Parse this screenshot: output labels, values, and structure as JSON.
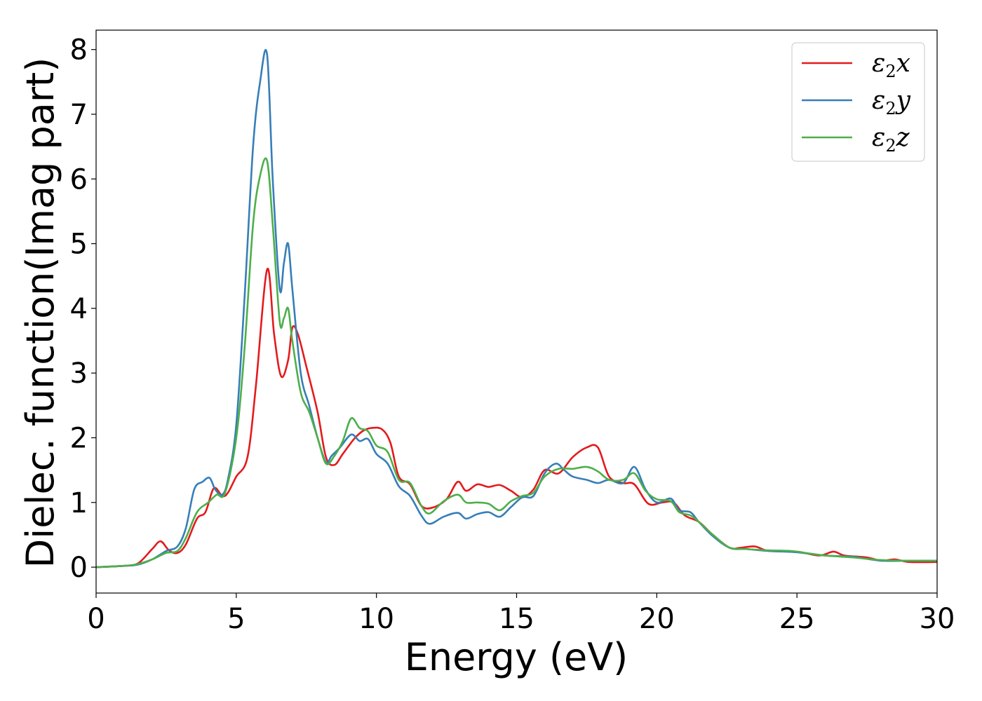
{
  "chart_data": {
    "type": "line",
    "xlabel": "Energy (eV)",
    "ylabel": "Dielec. function(Imag part)",
    "xlim": [
      0,
      30
    ],
    "ylim": [
      -0.4,
      8.3
    ],
    "xticks": [
      0,
      5,
      10,
      15,
      20,
      25,
      30
    ],
    "yticks": [
      0,
      1,
      2,
      3,
      4,
      5,
      6,
      7,
      8
    ],
    "grid": false,
    "legend_position": "top-right",
    "series": [
      {
        "name": "ε2x",
        "label_main": "ε",
        "label_sub": "2",
        "label_tail": "x",
        "color": "#e41a1c",
        "points": [
          [
            0,
            0
          ],
          [
            1,
            0.02
          ],
          [
            1.5,
            0.06
          ],
          [
            2,
            0.28
          ],
          [
            2.3,
            0.4
          ],
          [
            2.6,
            0.26
          ],
          [
            2.9,
            0.22
          ],
          [
            3.2,
            0.35
          ],
          [
            3.6,
            0.75
          ],
          [
            3.9,
            0.85
          ],
          [
            4.2,
            1.22
          ],
          [
            4.5,
            1.1
          ],
          [
            4.7,
            1.15
          ],
          [
            5,
            1.4
          ],
          [
            5.4,
            1.7
          ],
          [
            5.7,
            2.8
          ],
          [
            6.1,
            4.6
          ],
          [
            6.35,
            3.6
          ],
          [
            6.6,
            2.95
          ],
          [
            6.85,
            3.2
          ],
          [
            7,
            3.7
          ],
          [
            7.2,
            3.6
          ],
          [
            7.5,
            3.1
          ],
          [
            7.9,
            2.4
          ],
          [
            8.2,
            1.7
          ],
          [
            8.5,
            1.58
          ],
          [
            8.8,
            1.75
          ],
          [
            9.2,
            1.98
          ],
          [
            9.5,
            2.1
          ],
          [
            9.8,
            2.15
          ],
          [
            10.2,
            2.13
          ],
          [
            10.5,
            1.92
          ],
          [
            10.8,
            1.4
          ],
          [
            11.2,
            1.28
          ],
          [
            11.6,
            0.95
          ],
          [
            12,
            0.92
          ],
          [
            12.5,
            1.05
          ],
          [
            12.9,
            1.32
          ],
          [
            13.2,
            1.18
          ],
          [
            13.6,
            1.28
          ],
          [
            14,
            1.24
          ],
          [
            14.4,
            1.27
          ],
          [
            14.8,
            1.18
          ],
          [
            15.2,
            1.08
          ],
          [
            15.6,
            1.2
          ],
          [
            16,
            1.5
          ],
          [
            16.5,
            1.45
          ],
          [
            17,
            1.7
          ],
          [
            17.5,
            1.85
          ],
          [
            17.9,
            1.85
          ],
          [
            18.3,
            1.4
          ],
          [
            18.8,
            1.3
          ],
          [
            19.2,
            1.28
          ],
          [
            19.7,
            0.98
          ],
          [
            20.2,
            1.0
          ],
          [
            20.6,
            1.0
          ],
          [
            21,
            0.8
          ],
          [
            21.5,
            0.7
          ],
          [
            22,
            0.5
          ],
          [
            22.6,
            0.3
          ],
          [
            23,
            0.3
          ],
          [
            23.5,
            0.32
          ],
          [
            24,
            0.25
          ],
          [
            25,
            0.24
          ],
          [
            25.8,
            0.18
          ],
          [
            26.3,
            0.24
          ],
          [
            26.7,
            0.18
          ],
          [
            27.5,
            0.15
          ],
          [
            28,
            0.1
          ],
          [
            28.5,
            0.12
          ],
          [
            29,
            0.08
          ],
          [
            30,
            0.08
          ]
        ]
      },
      {
        "name": "ε2y",
        "label_main": "ε",
        "label_sub": "2",
        "label_tail": "y",
        "color": "#377eb8",
        "points": [
          [
            0,
            0
          ],
          [
            1,
            0.02
          ],
          [
            1.5,
            0.04
          ],
          [
            2,
            0.12
          ],
          [
            2.5,
            0.25
          ],
          [
            2.9,
            0.32
          ],
          [
            3.2,
            0.6
          ],
          [
            3.5,
            1.2
          ],
          [
            3.8,
            1.32
          ],
          [
            4.05,
            1.38
          ],
          [
            4.25,
            1.2
          ],
          [
            4.5,
            1.12
          ],
          [
            4.7,
            1.35
          ],
          [
            5,
            2.2
          ],
          [
            5.3,
            4.2
          ],
          [
            5.6,
            6.5
          ],
          [
            5.85,
            7.5
          ],
          [
            6.1,
            7.92
          ],
          [
            6.3,
            6.0
          ],
          [
            6.55,
            4.3
          ],
          [
            6.7,
            4.7
          ],
          [
            6.85,
            5.0
          ],
          [
            7,
            4.3
          ],
          [
            7.3,
            3.0
          ],
          [
            7.6,
            2.5
          ],
          [
            7.9,
            2.0
          ],
          [
            8.2,
            1.62
          ],
          [
            8.4,
            1.72
          ],
          [
            8.7,
            1.85
          ],
          [
            9.1,
            2.05
          ],
          [
            9.4,
            1.95
          ],
          [
            9.7,
            1.98
          ],
          [
            10,
            1.75
          ],
          [
            10.4,
            1.6
          ],
          [
            10.8,
            1.25
          ],
          [
            11.2,
            1.1
          ],
          [
            11.6,
            0.8
          ],
          [
            11.9,
            0.67
          ],
          [
            12.4,
            0.78
          ],
          [
            12.9,
            0.84
          ],
          [
            13.2,
            0.75
          ],
          [
            13.6,
            0.82
          ],
          [
            14,
            0.85
          ],
          [
            14.4,
            0.78
          ],
          [
            14.8,
            0.93
          ],
          [
            15.2,
            1.08
          ],
          [
            15.6,
            1.1
          ],
          [
            16,
            1.45
          ],
          [
            16.4,
            1.6
          ],
          [
            16.7,
            1.5
          ],
          [
            17,
            1.4
          ],
          [
            17.5,
            1.35
          ],
          [
            17.9,
            1.3
          ],
          [
            18.3,
            1.35
          ],
          [
            18.8,
            1.3
          ],
          [
            19.2,
            1.55
          ],
          [
            19.6,
            1.2
          ],
          [
            20,
            1.0
          ],
          [
            20.5,
            1.06
          ],
          [
            20.8,
            0.88
          ],
          [
            21.2,
            0.85
          ],
          [
            21.5,
            0.7
          ],
          [
            22,
            0.48
          ],
          [
            22.6,
            0.3
          ],
          [
            23.2,
            0.28
          ],
          [
            24,
            0.25
          ],
          [
            25,
            0.23
          ],
          [
            26,
            0.18
          ],
          [
            27,
            0.16
          ],
          [
            28,
            0.1
          ],
          [
            29,
            0.1
          ],
          [
            30,
            0.1
          ]
        ]
      },
      {
        "name": "ε2z",
        "label_main": "ε",
        "label_sub": "2",
        "label_tail": "z",
        "color": "#4daf4a",
        "points": [
          [
            0,
            0
          ],
          [
            1,
            0.02
          ],
          [
            1.5,
            0.05
          ],
          [
            2,
            0.12
          ],
          [
            2.5,
            0.22
          ],
          [
            2.9,
            0.25
          ],
          [
            3.2,
            0.45
          ],
          [
            3.6,
            0.85
          ],
          [
            4,
            1.0
          ],
          [
            4.3,
            1.12
          ],
          [
            4.6,
            1.15
          ],
          [
            5,
            2.0
          ],
          [
            5.3,
            3.4
          ],
          [
            5.6,
            5.3
          ],
          [
            5.85,
            6.05
          ],
          [
            6.1,
            6.28
          ],
          [
            6.3,
            5.3
          ],
          [
            6.55,
            3.8
          ],
          [
            6.7,
            3.85
          ],
          [
            6.85,
            4.0
          ],
          [
            7,
            3.5
          ],
          [
            7.3,
            2.7
          ],
          [
            7.6,
            2.4
          ],
          [
            7.9,
            2.0
          ],
          [
            8.2,
            1.6
          ],
          [
            8.5,
            1.72
          ],
          [
            8.8,
            1.95
          ],
          [
            9.1,
            2.3
          ],
          [
            9.4,
            2.15
          ],
          [
            9.7,
            2.1
          ],
          [
            10,
            1.88
          ],
          [
            10.4,
            1.78
          ],
          [
            10.8,
            1.35
          ],
          [
            11.2,
            1.3
          ],
          [
            11.6,
            0.95
          ],
          [
            11.9,
            0.83
          ],
          [
            12.4,
            1.02
          ],
          [
            12.9,
            1.12
          ],
          [
            13.2,
            1.0
          ],
          [
            13.6,
            1.0
          ],
          [
            14,
            0.98
          ],
          [
            14.4,
            0.88
          ],
          [
            14.8,
            1.02
          ],
          [
            15.2,
            1.1
          ],
          [
            15.6,
            1.15
          ],
          [
            16,
            1.4
          ],
          [
            16.5,
            1.52
          ],
          [
            17,
            1.52
          ],
          [
            17.5,
            1.55
          ],
          [
            17.9,
            1.48
          ],
          [
            18.3,
            1.35
          ],
          [
            18.8,
            1.35
          ],
          [
            19.2,
            1.45
          ],
          [
            19.6,
            1.18
          ],
          [
            20,
            1.05
          ],
          [
            20.5,
            1.02
          ],
          [
            20.8,
            0.85
          ],
          [
            21.2,
            0.8
          ],
          [
            21.5,
            0.7
          ],
          [
            22,
            0.5
          ],
          [
            22.6,
            0.3
          ],
          [
            23.2,
            0.28
          ],
          [
            24,
            0.26
          ],
          [
            24.8,
            0.25
          ],
          [
            25.3,
            0.22
          ],
          [
            26,
            0.18
          ],
          [
            27,
            0.15
          ],
          [
            28,
            0.11
          ],
          [
            29,
            0.1
          ],
          [
            30,
            0.1
          ]
        ]
      }
    ]
  }
}
